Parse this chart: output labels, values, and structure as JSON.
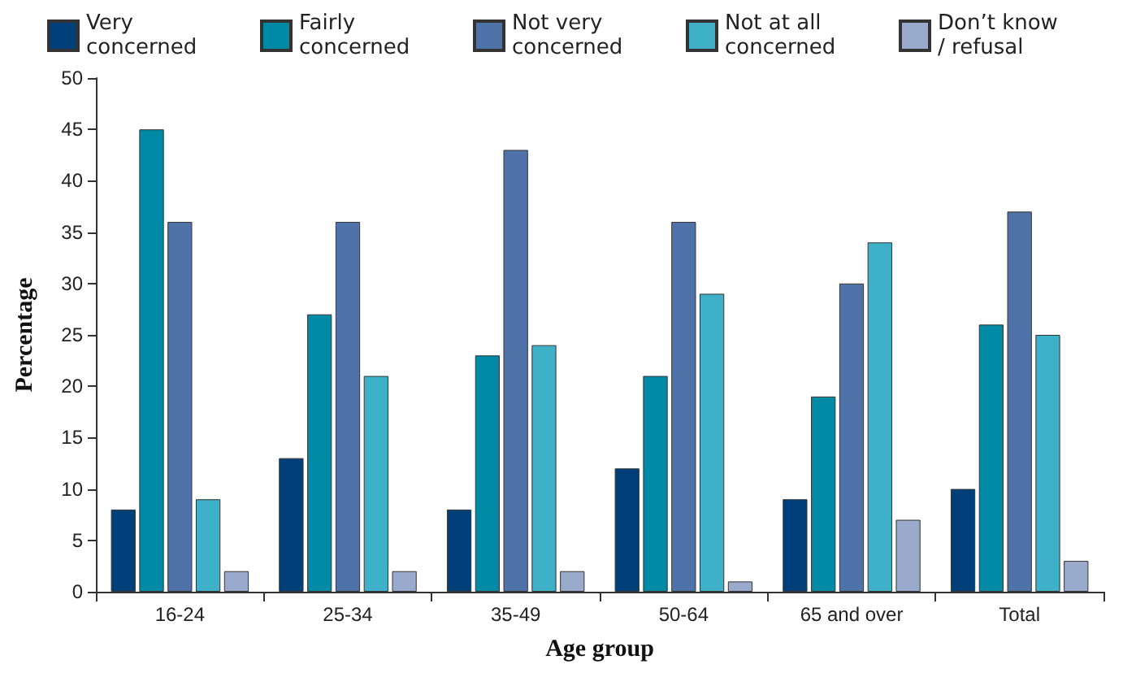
{
  "chart_data": {
    "type": "bar",
    "xlabel": "Age group",
    "ylabel": "Percentage",
    "categories": [
      "16-24",
      "25-34",
      "35-49",
      "50-64",
      "65 and over",
      "Total"
    ],
    "series": [
      {
        "name": "Very concerned",
        "color": "#003f7a",
        "values": [
          8,
          13,
          8,
          12,
          9,
          10
        ]
      },
      {
        "name": "Fairly concerned",
        "color": "#008aa6",
        "values": [
          45,
          27,
          23,
          21,
          19,
          26
        ]
      },
      {
        "name": "Not very concerned",
        "color": "#4f72a8",
        "values": [
          36,
          36,
          43,
          36,
          30,
          37
        ]
      },
      {
        "name": "Not at all concerned",
        "color": "#3eb1c9",
        "values": [
          9,
          21,
          24,
          29,
          34,
          25
        ]
      },
      {
        "name": "Don’t know/ refusal",
        "color": "#9aaacc",
        "values": [
          2,
          2,
          2,
          1,
          7,
          3
        ]
      }
    ],
    "ylim": [
      0,
      50
    ],
    "yticks": [
      0,
      5,
      10,
      15,
      20,
      25,
      30,
      35,
      40,
      45,
      50
    ],
    "grid": false,
    "legend": "top"
  }
}
